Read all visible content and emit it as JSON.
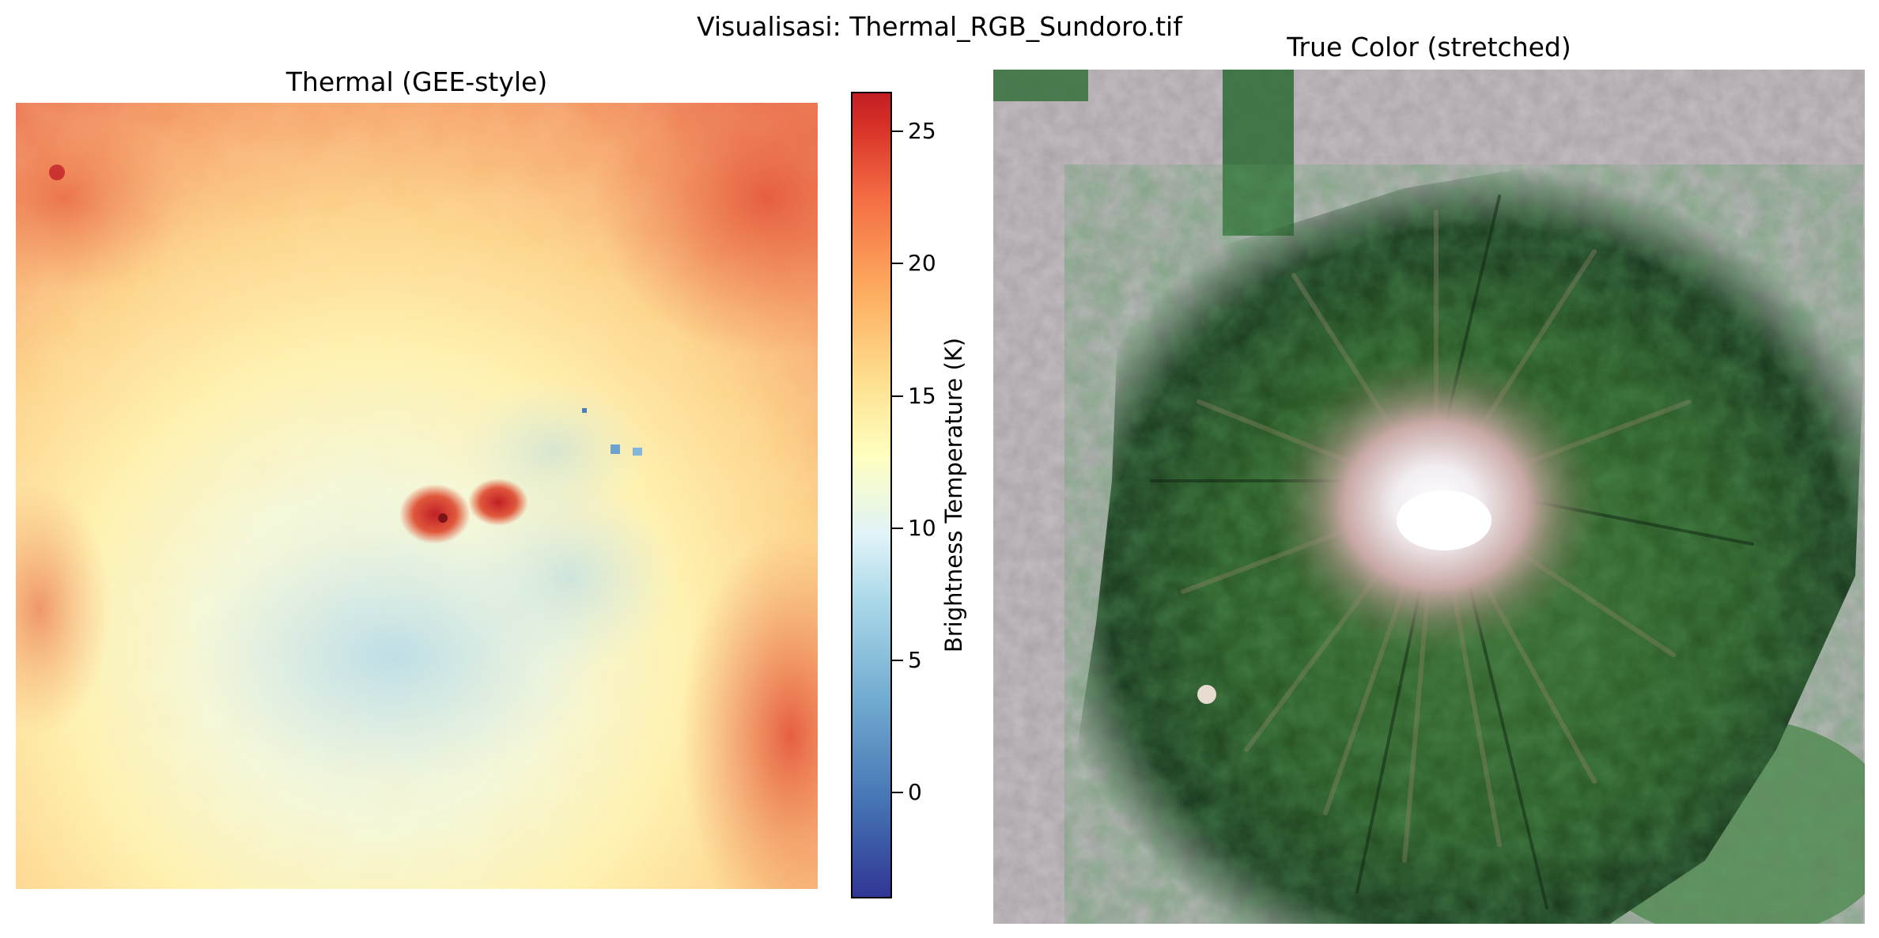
{
  "figure": {
    "suptitle": "Visualisasi: Thermal_RGB_Sundoro.tif"
  },
  "thermal_panel": {
    "title": "Thermal (GEE-style)",
    "colormap": "RdYlBu_r",
    "hotspot_color": "#c21f26",
    "cool_color": "#abd9e9"
  },
  "colorbar": {
    "label": "Brightness Temperature (K)",
    "ticks": [
      "0",
      "5",
      "10",
      "15",
      "20",
      "25"
    ],
    "range": [
      -4,
      26.5
    ],
    "colors": {
      "low": "#313695",
      "mid": "#ffffbf",
      "high": "#c21f26"
    }
  },
  "rgb_panel": {
    "title": "True Color (stretched)",
    "colors": {
      "forest": "#2f5a2a",
      "dark_forest": "#15301a",
      "crater": "#f2eef2",
      "bare": "#b9a7a8"
    }
  }
}
